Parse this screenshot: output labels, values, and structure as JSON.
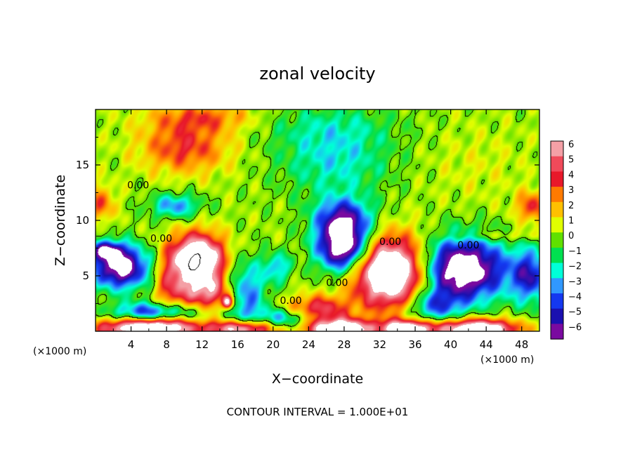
{
  "chart_data": {
    "type": "heatmap",
    "title": "zonal velocity",
    "xlabel": "X−coordinate",
    "ylabel": "Z−coordinate",
    "x_unit_left": "(×1000 m)",
    "x_unit_right": "(×1000 m)",
    "footer": "CONTOUR INTERVAL = 1.000E+01",
    "xlim": [
      0,
      50
    ],
    "ylim": [
      0,
      20
    ],
    "x_ticks": [
      4,
      8,
      12,
      16,
      20,
      24,
      28,
      32,
      36,
      40,
      44,
      48
    ],
    "x_tick_labels": [
      "4",
      "8",
      "12",
      "16",
      "20",
      "24",
      "28",
      "32",
      "36",
      "40",
      "44",
      "48"
    ],
    "y_ticks": [
      5,
      10,
      15
    ],
    "y_tick_labels": [
      "5",
      "10",
      "15"
    ],
    "colorbar": {
      "levels": [
        6,
        5,
        4,
        3,
        2,
        1,
        0,
        -1,
        -2,
        -3,
        -4,
        -5,
        -6
      ],
      "labels": [
        "6",
        "5",
        "4",
        "3",
        "2",
        "1",
        "0",
        "−1",
        "−2",
        "−3",
        "−4",
        "−5",
        "−6"
      ],
      "colors": [
        "#f4a0a6",
        "#f04a5a",
        "#e8182a",
        "#ff7a00",
        "#ffc000",
        "#e0ff00",
        "#60e000",
        "#00e050",
        "#00ffd8",
        "#3098ff",
        "#1438f0",
        "#1a10b0",
        "#7a0aa0"
      ]
    },
    "contour_labels": [
      "0.00",
      "0.00",
      "0.00",
      "0.00",
      "0.00",
      "0.00"
    ],
    "contour_label_positions": [
      [
        4.8,
        13.2
      ],
      [
        7.4,
        8.4
      ],
      [
        22.0,
        2.8
      ],
      [
        27.2,
        4.4
      ],
      [
        33.2,
        8.1
      ],
      [
        42.0,
        7.8
      ]
    ],
    "background_value": 0.4,
    "features": [
      {
        "x": 2.8,
        "z": 5.8,
        "u": -8.0,
        "rx": 3.2,
        "rz": 1.9
      },
      {
        "x": 1.2,
        "z": 7.3,
        "u": -5.0,
        "rx": 1.8,
        "rz": 0.8
      },
      {
        "x": 11.5,
        "z": 6.4,
        "u": 10.0,
        "rx": 3.0,
        "rz": 2.3
      },
      {
        "x": 12.7,
        "z": 3.4,
        "u": 4.5,
        "rx": 3.5,
        "rz": 1.5
      },
      {
        "x": 8.2,
        "z": 4.0,
        "u": 2.5,
        "rx": 1.6,
        "rz": 3.0
      },
      {
        "x": 16.8,
        "z": 3.3,
        "u": -4.5,
        "rx": 2.4,
        "rz": 3.0
      },
      {
        "x": 14.9,
        "z": 2.6,
        "u": 7.0,
        "rx": 0.6,
        "rz": 0.6
      },
      {
        "x": 27.9,
        "z": 7.6,
        "u": -9.0,
        "rx": 2.8,
        "rz": 2.2
      },
      {
        "x": 27.9,
        "z": 10.2,
        "u": -5.0,
        "rx": 3.2,
        "rz": 1.9
      },
      {
        "x": 33.3,
        "z": 5.3,
        "u": 10.0,
        "rx": 4.2,
        "rz": 3.1
      },
      {
        "x": 41.3,
        "z": 5.6,
        "u": -9.0,
        "rx": 4.8,
        "rz": 2.8
      },
      {
        "x": 49.0,
        "z": 5.0,
        "u": -5.0,
        "rx": 2.2,
        "rz": 2.4
      },
      {
        "x": 25.0,
        "z": 2.0,
        "u": 4.5,
        "rx": 3.5,
        "rz": 1.2
      },
      {
        "x": 38.0,
        "z": 2.3,
        "u": -4.0,
        "rx": 3.0,
        "rz": 1.5
      },
      {
        "x": 6.5,
        "z": 1.7,
        "u": -5.0,
        "rx": 4.5,
        "rz": 0.9
      },
      {
        "x": 21.5,
        "z": 1.2,
        "u": -3.5,
        "rx": 3.2,
        "rz": 0.9
      },
      {
        "x": 6.0,
        "z": 0.3,
        "u": 9.0,
        "rx": 5.5,
        "rz": 0.9
      },
      {
        "x": 16.5,
        "z": 0.2,
        "u": 7.0,
        "rx": 3.6,
        "rz": 0.8
      },
      {
        "x": 27.5,
        "z": 0.2,
        "u": 9.0,
        "rx": 3.5,
        "rz": 0.9
      },
      {
        "x": 35.0,
        "z": 0.2,
        "u": 8.0,
        "rx": 3.0,
        "rz": 0.8
      },
      {
        "x": 43.0,
        "z": 0.2,
        "u": 9.0,
        "rx": 4.5,
        "rz": 0.9
      },
      {
        "x": 10.0,
        "z": 16.6,
        "u": 3.5,
        "rx": 5.0,
        "rz": 2.3
      },
      {
        "x": 12.0,
        "z": 19.3,
        "u": 2.6,
        "rx": 6.0,
        "rz": 1.3
      },
      {
        "x": 0.6,
        "z": 11.5,
        "u": 3.0,
        "rx": 1.5,
        "rz": 1.6
      },
      {
        "x": 49.3,
        "z": 11.2,
        "u": 3.5,
        "rx": 1.9,
        "rz": 1.4
      },
      {
        "x": 27.0,
        "z": 15.5,
        "u": -2.5,
        "rx": 6.0,
        "rz": 3.3
      },
      {
        "x": 26.0,
        "z": 18.6,
        "u": -1.2,
        "rx": 8.0,
        "rz": 2.0
      },
      {
        "x": 9.0,
        "z": 11.3,
        "u": -3.5,
        "rx": 2.8,
        "rz": 1.1
      },
      {
        "x": 20.5,
        "z": 5.8,
        "u": -3.0,
        "rx": 1.5,
        "rz": 1.3
      },
      {
        "x": 43.0,
        "z": 15.0,
        "u": 0.6,
        "rx": 5.5,
        "rz": 3.5
      },
      {
        "x": 45.0,
        "z": 8.6,
        "u": 1.5,
        "rx": 5.5,
        "rz": 0.5
      }
    ]
  }
}
